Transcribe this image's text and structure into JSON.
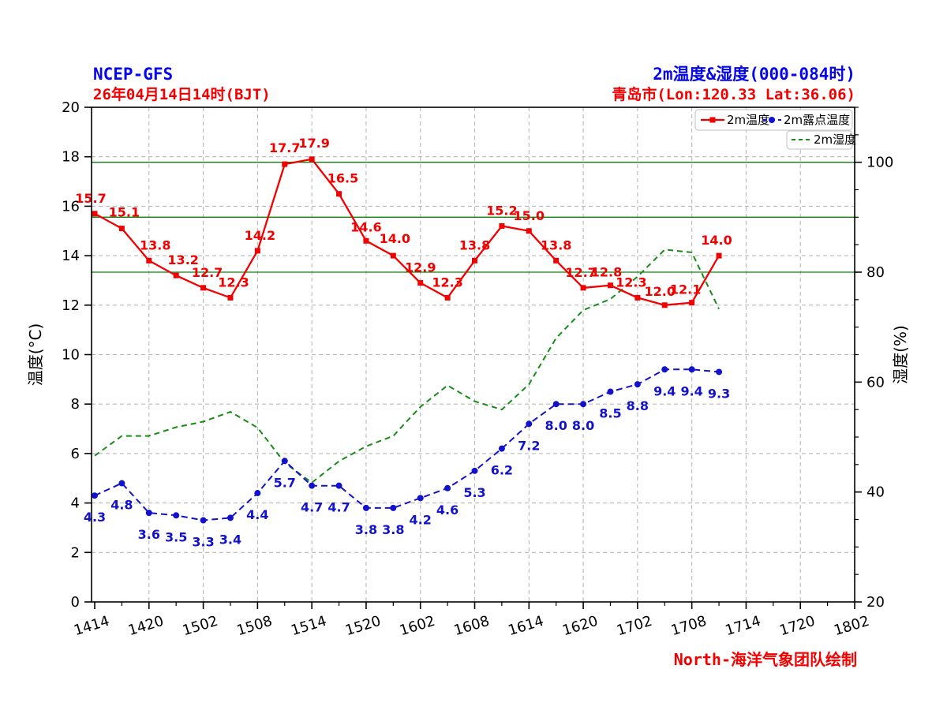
{
  "header": {
    "model": "NCEP-GFS",
    "init_time": "26年04月14日14时(BJT)",
    "title": "2m温度&湿度(000-084时)",
    "location": "青岛市(Lon:120.33 Lat:36.06)"
  },
  "footer": {
    "credit": "North-海洋气象团队绘制"
  },
  "colors": {
    "temperature": "#f20000",
    "dew_point": "#1212cc",
    "humidity": "#168c16",
    "reference_line": "#0e7d0e",
    "grid": "#b8b8b8",
    "axis": "#000000",
    "title_blue": "#0505ee",
    "title_red": "#f20000",
    "legend_border": "#cccccc"
  },
  "chart_data": {
    "type": "line",
    "title": "2m温度&湿度(000-084时)",
    "x_tick_labels": [
      "1414",
      "1420",
      "1502",
      "1508",
      "1514",
      "1520",
      "1602",
      "1608",
      "1614",
      "1620",
      "1702",
      "1708",
      "1714",
      "1720",
      "1802"
    ],
    "x_major_step_hours": 6,
    "x_minor_step_hours": 3,
    "x_span_hours": 84,
    "data_step_hours": 3,
    "left_axis": {
      "label": "温度(°C)",
      "min": 0,
      "max": 20,
      "tick_interval": 2,
      "ticks": [
        0,
        2,
        4,
        6,
        8,
        10,
        12,
        14,
        16,
        18,
        20
      ]
    },
    "right_axis": {
      "label": "湿度(%)",
      "min": 20,
      "max": 110,
      "tick_interval": 20,
      "ticks": [
        20,
        40,
        60,
        80,
        100
      ],
      "minor_interval": 5
    },
    "humidity_reference_lines": [
      80,
      90,
      100
    ],
    "grid": "dashed-major-both-axes",
    "legend": {
      "row1": [
        "2m温度",
        "2m露点温度"
      ],
      "row2": [
        "2m湿度"
      ],
      "position": "top-right"
    },
    "series": [
      {
        "name": "2m温度",
        "axis": "left",
        "style": "solid",
        "marker": "square",
        "values": [
          15.7,
          15.1,
          13.8,
          13.2,
          12.7,
          12.3,
          14.2,
          17.7,
          17.9,
          16.5,
          14.6,
          14.0,
          12.9,
          12.3,
          13.8,
          15.2,
          15.0,
          13.8,
          12.7,
          12.8,
          12.3,
          12.0,
          12.1,
          14.0
        ],
        "labeled": true
      },
      {
        "name": "2m露点温度",
        "axis": "left",
        "style": "dashed",
        "marker": "circle",
        "values": [
          4.3,
          4.8,
          3.6,
          3.5,
          3.3,
          3.4,
          4.4,
          5.7,
          4.7,
          4.7,
          3.8,
          3.8,
          4.2,
          4.6,
          5.3,
          6.2,
          7.2,
          8.0,
          8.0,
          8.5,
          8.8,
          9.4,
          9.4,
          9.3
        ],
        "labeled": true
      },
      {
        "name": "2m湿度",
        "axis": "right",
        "style": "dashed",
        "marker": "none",
        "values": [
          46.6,
          50.2,
          50.2,
          51.8,
          52.8,
          54.6,
          51.7,
          45.3,
          41.7,
          45.6,
          48.3,
          50.2,
          55.5,
          59.4,
          56.5,
          55.0,
          59.6,
          68.0,
          73.1,
          75.1,
          79.2,
          84.1,
          83.6,
          73.3
        ],
        "labeled": false
      }
    ]
  }
}
